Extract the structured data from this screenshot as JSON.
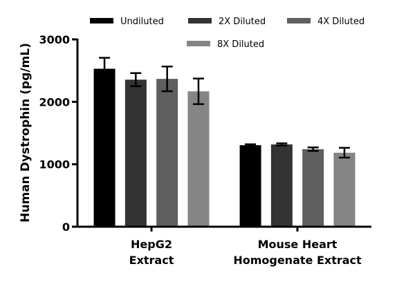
{
  "chart_data": {
    "type": "bar",
    "title": "",
    "xlabel": "",
    "ylabel": "Human Dystrophin (pg/mL)",
    "ylim": [
      0,
      3000
    ],
    "yticks": [
      "0",
      "1000",
      "2000",
      "3000"
    ],
    "yticks_values": [
      0,
      1000,
      2000,
      3000
    ],
    "categories": [
      [
        "HepG2",
        "Extract"
      ],
      [
        "Mouse Heart",
        "Homogenate Extract"
      ]
    ],
    "legend_position": "top",
    "series": [
      {
        "name": "Undiluted",
        "color": "#000000",
        "values": [
          2530,
          1305
        ],
        "errors": [
          175,
          15
        ]
      },
      {
        "name": "2X Diluted",
        "color": "#333333",
        "values": [
          2355,
          1318
        ],
        "errors": [
          105,
          18
        ]
      },
      {
        "name": "4X Diluted",
        "color": "#5f5f5f",
        "values": [
          2368,
          1242
        ],
        "errors": [
          198,
          28
        ]
      },
      {
        "name": "8X Diluted",
        "color": "#858585",
        "values": [
          2168,
          1185
        ],
        "errors": [
          205,
          78
        ]
      }
    ]
  }
}
